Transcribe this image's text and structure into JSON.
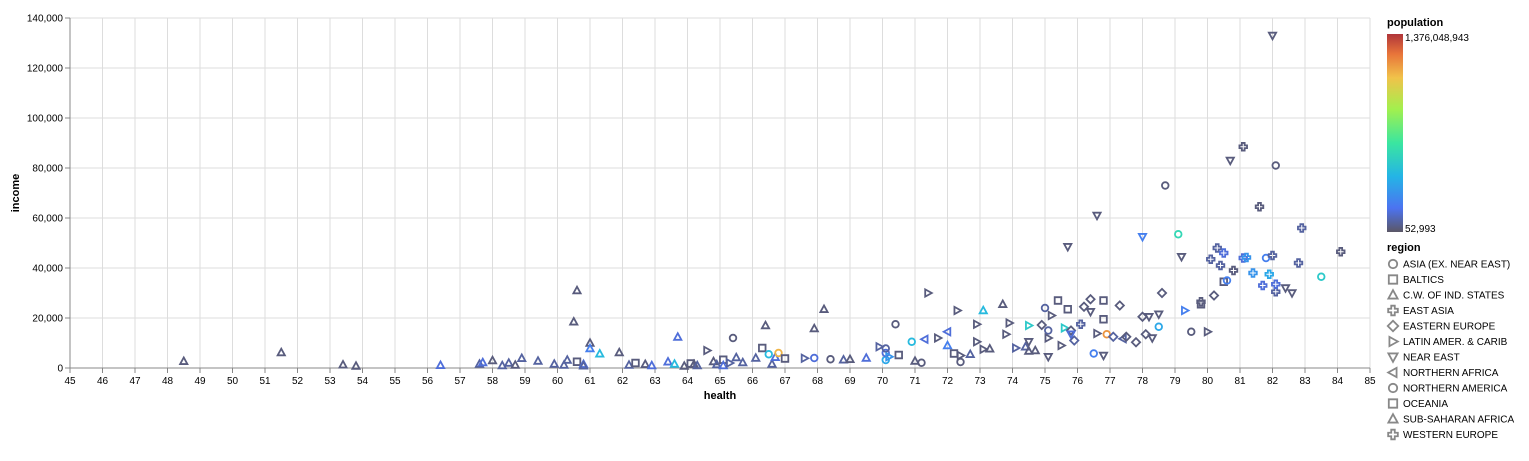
{
  "chart_data": {
    "type": "scatter",
    "xlabel": "health",
    "ylabel": "income",
    "xlim": [
      45,
      85
    ],
    "ylim": [
      0,
      140000
    ],
    "x_ticks": [
      45,
      46,
      47,
      48,
      49,
      50,
      51,
      52,
      53,
      54,
      55,
      56,
      57,
      58,
      59,
      60,
      61,
      62,
      63,
      64,
      65,
      66,
      67,
      68,
      69,
      70,
      71,
      72,
      73,
      74,
      75,
      76,
      77,
      78,
      79,
      80,
      81,
      82,
      83,
      84,
      85
    ],
    "y_ticks": [
      0,
      20000,
      40000,
      60000,
      80000,
      100000,
      120000,
      140000
    ],
    "y_tick_labels": [
      "0",
      "20,000",
      "40,000",
      "60,000",
      "80,000",
      "100,000",
      "120,000",
      "140,000"
    ],
    "grid": true,
    "color_legend": {
      "title": "population",
      "max_label": "1,376,048,943",
      "min_label": "52,993",
      "max": 1376048943,
      "min": 52993
    },
    "shape_legend": {
      "title": "region",
      "entries": [
        {
          "label": "ASIA (EX. NEAR EAST)",
          "shape": "circle"
        },
        {
          "label": "BALTICS",
          "shape": "square"
        },
        {
          "label": "C.W. OF IND. STATES",
          "shape": "triangle-up"
        },
        {
          "label": "EAST ASIA",
          "shape": "cross"
        },
        {
          "label": "EASTERN EUROPE",
          "shape": "diamond"
        },
        {
          "label": "LATIN AMER. & CARIB",
          "shape": "triangle-right"
        },
        {
          "label": "NEAR EAST",
          "shape": "triangle-down"
        },
        {
          "label": "NORTHERN AFRICA",
          "shape": "triangle-left"
        },
        {
          "label": "NORTHERN AMERICA",
          "shape": "circle"
        },
        {
          "label": "OCEANIA",
          "shape": "square"
        },
        {
          "label": "SUB-SAHARAN AFRICA",
          "shape": "triangle-up"
        },
        {
          "label": "WESTERN EUROPE",
          "shape": "cross"
        }
      ]
    },
    "points": [
      [
        48.5,
        2700,
        "triangle-up",
        0.02
      ],
      [
        51.5,
        6200,
        "triangle-up",
        0.02
      ],
      [
        53.4,
        1300,
        "triangle-up",
        0.02
      ],
      [
        53.8,
        800,
        "triangle-up",
        0.02
      ],
      [
        56.4,
        1100,
        "triangle-up",
        0.1
      ],
      [
        57.6,
        1600,
        "triangle-up",
        0.05
      ],
      [
        57.7,
        2200,
        "triangle-up",
        0.1
      ],
      [
        58,
        3000,
        "triangle-up",
        0.02
      ],
      [
        58.3,
        1000,
        "triangle-up",
        0.05
      ],
      [
        58.5,
        2000,
        "triangle-up",
        0.05
      ],
      [
        58.7,
        1200,
        "triangle-up",
        0.02
      ],
      [
        58.9,
        3900,
        "triangle-up",
        0.05
      ],
      [
        59.4,
        2800,
        "triangle-up",
        0.05
      ],
      [
        59.9,
        1600,
        "triangle-up",
        0.05
      ],
      [
        60.2,
        1200,
        "triangle-up",
        0.05
      ],
      [
        60.3,
        3200,
        "triangle-up",
        0.05
      ],
      [
        60.5,
        18500,
        "triangle-up",
        0.02
      ],
      [
        60.6,
        31000,
        "triangle-up",
        0.02
      ],
      [
        60.6,
        2500,
        "square",
        0.02
      ],
      [
        60.8,
        1500,
        "triangle-up",
        0.1
      ],
      [
        60.8,
        900,
        "triangle-up",
        0.05
      ],
      [
        61,
        10000,
        "triangle-up",
        0.02
      ],
      [
        61,
        7800,
        "triangle-up",
        0.15
      ],
      [
        61.3,
        5700,
        "triangle-up",
        0.3
      ],
      [
        61.9,
        6200,
        "triangle-up",
        0.02
      ],
      [
        62.2,
        1200,
        "triangle-up",
        0.05
      ],
      [
        62.4,
        2000,
        "square",
        0.02
      ],
      [
        62.7,
        1500,
        "triangle-up",
        0.02
      ],
      [
        62.9,
        1000,
        "triangle-up",
        0.1
      ],
      [
        63.4,
        2500,
        "triangle-up",
        0.1
      ],
      [
        63.6,
        1600,
        "triangle-up",
        0.3
      ],
      [
        63.7,
        12400,
        "triangle-up",
        0.1
      ],
      [
        63.9,
        800,
        "triangle-up",
        0.02
      ],
      [
        64.1,
        1800,
        "square",
        0.02
      ],
      [
        64.2,
        1500,
        "triangle-up",
        0.02
      ],
      [
        64.3,
        1000,
        "triangle-up",
        0.05
      ],
      [
        64.6,
        7000,
        "triangle-right",
        0.02
      ],
      [
        64.8,
        2600,
        "triangle-up",
        0.02
      ],
      [
        64.9,
        1400,
        "triangle-up",
        0.05
      ],
      [
        65.1,
        3300,
        "square",
        0.02
      ],
      [
        65.1,
        1000,
        "triangle-up",
        0.1
      ],
      [
        65.3,
        2000,
        "triangle-right",
        0.05
      ],
      [
        65.4,
        12000,
        "circle",
        0.02
      ],
      [
        65.5,
        4200,
        "triangle-up",
        0.05
      ],
      [
        65.7,
        2200,
        "triangle-up",
        0.05
      ],
      [
        66.1,
        4000,
        "triangle-up",
        0.05
      ],
      [
        66.3,
        8000,
        "square",
        0.02
      ],
      [
        66.4,
        17000,
        "triangle-up",
        0.02
      ],
      [
        66.5,
        5500,
        "circle",
        0.3
      ],
      [
        66.6,
        1600,
        "triangle-up",
        0.05
      ],
      [
        66.7,
        4300,
        "triangle-up",
        0.1
      ],
      [
        66.8,
        6000,
        "circle",
        0.8
      ],
      [
        67,
        3800,
        "square",
        0.02
      ],
      [
        67.6,
        3900,
        "triangle-right",
        0.05
      ],
      [
        67.9,
        4000,
        "circle",
        0.1
      ],
      [
        67.9,
        15800,
        "triangle-up",
        0.02
      ],
      [
        68.2,
        23500,
        "triangle-up",
        0.02
      ],
      [
        68.4,
        3500,
        "circle",
        0.02
      ],
      [
        68.8,
        3300,
        "triangle-up",
        0.05
      ],
      [
        69,
        3500,
        "triangle-up",
        0.02
      ],
      [
        69.5,
        4000,
        "triangle-up",
        0.1
      ],
      [
        69.9,
        8500,
        "triangle-right",
        0.05
      ],
      [
        70.1,
        3200,
        "circle",
        0.25
      ],
      [
        70.1,
        6000,
        "circle",
        0.1
      ],
      [
        70.1,
        7800,
        "circle",
        0.05
      ],
      [
        70.2,
        4500,
        "triangle-right",
        0.2
      ],
      [
        70.4,
        17500,
        "circle",
        0.02
      ],
      [
        70.5,
        5200,
        "square",
        0.02
      ],
      [
        70.9,
        10500,
        "circle",
        0.3
      ],
      [
        71,
        2800,
        "triangle-up",
        0.02
      ],
      [
        71.2,
        2100,
        "circle",
        0.02
      ],
      [
        71.3,
        11500,
        "triangle-left",
        0.1
      ],
      [
        71.4,
        30000,
        "triangle-right",
        0.02
      ],
      [
        71.7,
        12000,
        "triangle-right",
        0.02
      ],
      [
        72,
        14500,
        "triangle-left",
        0.1
      ],
      [
        72,
        9000,
        "triangle-up",
        0.15
      ],
      [
        72.2,
        5800,
        "square",
        0.02
      ],
      [
        72.3,
        23000,
        "triangle-right",
        0.02
      ],
      [
        72.4,
        5000,
        "triangle-right",
        0.02
      ],
      [
        72.4,
        2400,
        "circle",
        0.02
      ],
      [
        72.7,
        5500,
        "triangle-up",
        0.05
      ],
      [
        72.9,
        17500,
        "triangle-right",
        0.02
      ],
      [
        72.9,
        10500,
        "triangle-right",
        0.02
      ],
      [
        73.1,
        23000,
        "triangle-up",
        0.3
      ],
      [
        73.1,
        7500,
        "triangle-right",
        0.02
      ],
      [
        73.3,
        7700,
        "triangle-up",
        0.02
      ],
      [
        73.7,
        25500,
        "triangle-up",
        0.02
      ],
      [
        73.8,
        13500,
        "triangle-right",
        0.02
      ],
      [
        73.9,
        18000,
        "triangle-right",
        0.02
      ],
      [
        74.1,
        8000,
        "triangle-right",
        0.05
      ],
      [
        74.4,
        8500,
        "triangle-up",
        0.05
      ],
      [
        74.5,
        17000,
        "triangle-right",
        0.35
      ],
      [
        74.5,
        10500,
        "triangle-down",
        0.02
      ],
      [
        74.5,
        6800,
        "triangle-up",
        0.02
      ],
      [
        74.7,
        7000,
        "triangle-up",
        0.02
      ],
      [
        74.9,
        17200,
        "diamond",
        0.02
      ],
      [
        75,
        24000,
        "circle",
        0.05
      ],
      [
        75.1,
        15000,
        "circle",
        0.05
      ],
      [
        75.1,
        12000,
        "triangle-right",
        0.02
      ],
      [
        75.1,
        4500,
        "triangle-down",
        0.02
      ],
      [
        75.2,
        21000,
        "triangle-right",
        0.02
      ],
      [
        75.4,
        27000,
        "square",
        0.02
      ],
      [
        75.5,
        9000,
        "triangle-right",
        0.02
      ],
      [
        75.6,
        16000,
        "triangle-right",
        0.35
      ],
      [
        75.7,
        23500,
        "square",
        0.02
      ],
      [
        75.7,
        48500,
        "triangle-down",
        0.02
      ],
      [
        75.8,
        15000,
        "diamond",
        0.02
      ],
      [
        75.8,
        13500,
        "triangle-down",
        0.1
      ],
      [
        75.9,
        11000,
        "diamond",
        0.05
      ],
      [
        76.1,
        17500,
        "cross",
        0.05
      ],
      [
        76.2,
        24500,
        "diamond",
        0.02
      ],
      [
        76.4,
        27500,
        "diamond",
        0.02
      ],
      [
        76.4,
        22500,
        "triangle-down",
        0.02
      ],
      [
        76.5,
        5800,
        "circle",
        0.15
      ],
      [
        76.6,
        13800,
        "triangle-right",
        0.02
      ],
      [
        76.6,
        61000,
        "triangle-down",
        0.02
      ],
      [
        76.8,
        27000,
        "square",
        0.02
      ],
      [
        76.8,
        19500,
        "square",
        0.02
      ],
      [
        76.8,
        5000,
        "triangle-down",
        0.02
      ],
      [
        76.9,
        13500,
        "circle",
        0.85
      ],
      [
        77.1,
        12500,
        "diamond",
        0.05
      ],
      [
        77.3,
        25000,
        "diamond",
        0.02
      ],
      [
        77.4,
        11700,
        "triangle-left",
        0.05
      ],
      [
        77.5,
        12500,
        "diamond",
        0.02
      ],
      [
        77.8,
        10300,
        "diamond",
        0.02
      ],
      [
        78,
        20500,
        "diamond",
        0.02
      ],
      [
        78,
        52500,
        "triangle-down",
        0.15
      ],
      [
        78.1,
        13500,
        "diamond",
        0.02
      ],
      [
        78.2,
        20500,
        "triangle-down",
        0.02
      ],
      [
        78.3,
        12000,
        "triangle-down",
        0.02
      ],
      [
        78.5,
        16500,
        "circle",
        0.25
      ],
      [
        78.5,
        21500,
        "triangle-down",
        0.02
      ],
      [
        78.6,
        30000,
        "diamond",
        0.02
      ],
      [
        78.7,
        73000,
        "circle",
        0.02
      ],
      [
        79.1,
        53500,
        "circle",
        0.4
      ],
      [
        79.2,
        44500,
        "triangle-down",
        0.02
      ],
      [
        79.3,
        23000,
        "triangle-right",
        0.15
      ],
      [
        79.5,
        14500,
        "circle",
        0.02
      ],
      [
        79.8,
        25500,
        "square",
        0.02
      ],
      [
        79.8,
        26500,
        "cross",
        0.02
      ],
      [
        80,
        14500,
        "triangle-right",
        0.02
      ],
      [
        80.1,
        43500,
        "cross",
        0.05
      ],
      [
        80.2,
        29000,
        "diamond",
        0.02
      ],
      [
        80.3,
        48000,
        "cross",
        0.05
      ],
      [
        80.4,
        41000,
        "cross",
        0.05
      ],
      [
        80.5,
        46000,
        "cross",
        0.1
      ],
      [
        80.5,
        34500,
        "square",
        0.02
      ],
      [
        80.6,
        35000,
        "circle",
        0.15
      ],
      [
        80.7,
        83000,
        "triangle-down",
        0.02
      ],
      [
        80.8,
        39000,
        "cross",
        0.02
      ],
      [
        81.1,
        88500,
        "cross",
        0.02
      ],
      [
        81.1,
        44000,
        "cross",
        0.1
      ],
      [
        81.2,
        44200,
        "cross",
        0.2
      ],
      [
        81.4,
        38000,
        "cross",
        0.2
      ],
      [
        81.6,
        64500,
        "cross",
        0.02
      ],
      [
        81.7,
        33000,
        "cross",
        0.1
      ],
      [
        81.8,
        44000,
        "circle",
        0.15
      ],
      [
        81.9,
        37500,
        "cross",
        0.25
      ],
      [
        82,
        45000,
        "cross",
        0.05
      ],
      [
        82,
        133000,
        "triangle-down",
        0.02
      ],
      [
        82.1,
        30500,
        "cross",
        0.05
      ],
      [
        82.1,
        33500,
        "cross",
        0.1
      ],
      [
        82.1,
        81000,
        "circle",
        0.02
      ],
      [
        82.4,
        32000,
        "triangle-down",
        0.02
      ],
      [
        82.6,
        30000,
        "triangle-down",
        0.02
      ],
      [
        82.8,
        42000,
        "cross",
        0.05
      ],
      [
        82.9,
        56000,
        "cross",
        0.05
      ],
      [
        83.5,
        36500,
        "circle",
        0.35
      ],
      [
        84.1,
        46500,
        "cross",
        0.02
      ]
    ]
  }
}
